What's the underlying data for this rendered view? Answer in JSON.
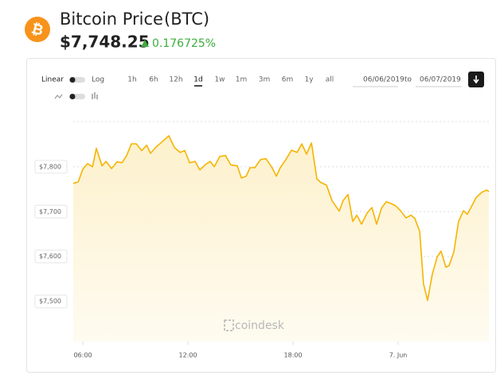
{
  "header": {
    "logo_glyph": "₿",
    "title": "Bitcoin Price",
    "ticker": "(BTC)",
    "price": "$7,748.25",
    "change": "0.176725%"
  },
  "controls": {
    "scale_linear": "Linear",
    "scale_log": "Log",
    "ranges": [
      "1h",
      "6h",
      "12h",
      "1d",
      "1w",
      "1m",
      "3m",
      "6m",
      "1y",
      "all"
    ],
    "selected_range": 3,
    "date_from": "06/06/2019",
    "date_to_word": "to",
    "date_to": "06/07/2019"
  },
  "watermark": "coindesk",
  "chart_data": {
    "type": "area",
    "color": "#f5b400",
    "x": [
      5.45,
      5.73,
      6.0,
      6.27,
      6.55,
      6.77,
      7.09,
      7.32,
      7.64,
      7.95,
      8.23,
      8.5,
      8.77,
      9.05,
      9.36,
      9.64,
      9.86,
      10.18,
      10.5,
      10.91,
      11.23,
      11.55,
      11.82,
      12.09,
      12.41,
      12.68,
      13.0,
      13.27,
      13.5,
      13.82,
      14.14,
      14.45,
      14.82,
      15.05,
      15.32,
      15.55,
      15.82,
      16.14,
      16.45,
      16.77,
      17.05,
      17.27,
      17.59,
      17.91,
      18.23,
      18.5,
      18.77,
      19.05,
      19.36,
      19.59,
      19.91,
      20.23,
      20.64,
      20.86,
      21.14,
      21.41,
      21.64,
      21.91,
      22.23,
      22.5,
      22.77,
      23.05,
      23.32,
      23.59,
      23.86,
      24.14,
      24.45,
      24.73,
      24.95,
      25.23,
      25.45,
      25.68,
      25.95,
      26.23,
      26.45,
      26.73,
      26.91,
      27.18,
      27.45,
      27.73,
      27.95,
      28.18,
      28.45,
      28.77,
      29.05,
      29.18
    ],
    "values": [
      7763,
      7766,
      7795,
      7807,
      7800,
      7841,
      7802,
      7812,
      7796,
      7811,
      7809,
      7825,
      7851,
      7851,
      7836,
      7848,
      7830,
      7844,
      7855,
      7869,
      7843,
      7832,
      7836,
      7809,
      7812,
      7793,
      7805,
      7812,
      7800,
      7823,
      7825,
      7804,
      7802,
      7775,
      7779,
      7798,
      7798,
      7816,
      7818,
      7800,
      7779,
      7798,
      7816,
      7837,
      7832,
      7851,
      7828,
      7853,
      7773,
      7765,
      7759,
      7724,
      7701,
      7725,
      7738,
      7678,
      7692,
      7672,
      7697,
      7709,
      7672,
      7708,
      7722,
      7718,
      7713,
      7702,
      7686,
      7692,
      7685,
      7656,
      7539,
      7502,
      7560,
      7599,
      7612,
      7576,
      7580,
      7610,
      7678,
      7702,
      7694,
      7711,
      7731,
      7743,
      7748,
      7745
    ],
    "xlim": [
      5.45,
      29.18
    ],
    "xticks": [
      {
        "value": 6,
        "label": "06:00"
      },
      {
        "value": 12,
        "label": "12:00"
      },
      {
        "value": 18,
        "label": "18:00"
      },
      {
        "value": 24,
        "label": "7. Jun"
      }
    ],
    "ylim": [
      7410,
      7906
    ],
    "yticks": [
      {
        "value": 7500,
        "label": "$7,500"
      },
      {
        "value": 7600,
        "label": "$7,600"
      },
      {
        "value": 7700,
        "label": "$7,700"
      },
      {
        "value": 7800,
        "label": "$7,800"
      }
    ],
    "grid": true
  }
}
